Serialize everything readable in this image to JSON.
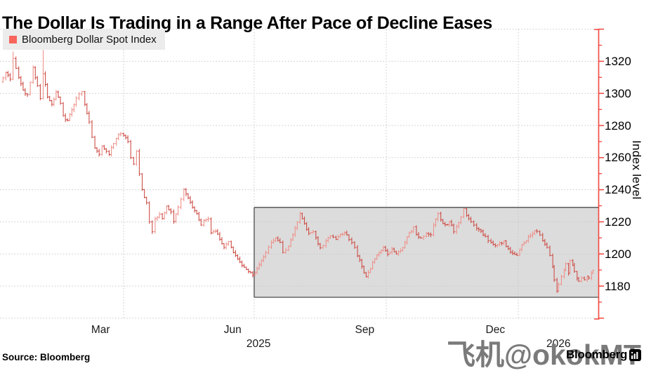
{
  "title": "The Dollar Is Trading in a Range After Pace of Decline Eases",
  "legend": {
    "label": "Bloomberg Dollar Spot Index",
    "swatch_icon": "red-square-icon"
  },
  "source": "Source: Bloomberg",
  "branding": {
    "logo_text": "Bloomberg",
    "logo_icon": "bloomberg-terminal-icon"
  },
  "watermark": "飞机@okokMT",
  "colors": {
    "accent_red_axis": "#f2453e",
    "bar_up": "#ee928c",
    "bar_down": "#cd4f48",
    "legend_swatch": "#f8655c",
    "legend_bg": "#ececec",
    "grid": "#c7c7c7",
    "range_box_fill": "#dcdcdc",
    "range_box_border": "#4c4c4c",
    "watermark_gray": "#7a7a7a"
  },
  "chart_data": {
    "type": "ohlc",
    "title": "The Dollar Is Trading in a Range After Pace of Decline Eases",
    "y_axis": {
      "label": "Index level",
      "ticks": [
        1180,
        1200,
        1220,
        1240,
        1260,
        1280,
        1300,
        1320
      ],
      "minor_tick_step": 10,
      "grid_step": 20,
      "ylim": [
        1159,
        1341
      ]
    },
    "x_axis": {
      "month_labels": [
        {
          "text": "Mar",
          "date": "2025-03-16"
        },
        {
          "text": "Jun",
          "date": "2025-06-16"
        },
        {
          "text": "Sep",
          "date": "2025-09-16"
        },
        {
          "text": "Dec",
          "date": "2025-12-16"
        }
      ],
      "year_labels": [
        {
          "text": "2025",
          "date": "2025-07-04"
        },
        {
          "text": "2026",
          "date": "2026-01-29"
        }
      ],
      "gridline_dates": [
        "2025-04-01",
        "2025-07-01",
        "2025-10-01",
        "2026-01-01"
      ],
      "range": [
        "2025-01-04",
        "2026-02-25"
      ]
    },
    "range_box": {
      "from": "2025-07-01",
      "high": 1229,
      "low": 1173
    },
    "series": [
      {
        "name": "Bloomberg Dollar Spot Index",
        "dates": [
          "2025-01-05",
          "2025-01-09",
          "2025-01-12",
          "2025-01-14",
          "2025-01-18",
          "2025-01-21",
          "2025-01-24",
          "2025-01-28",
          "2025-01-31",
          "2025-02-02",
          "2025-02-04",
          "2025-02-07",
          "2025-02-10",
          "2025-02-13",
          "2025-02-16",
          "2025-02-18",
          "2025-02-21",
          "2025-02-24",
          "2025-02-27",
          "2025-03-03",
          "2025-03-05",
          "2025-03-08",
          "2025-03-10",
          "2025-03-12",
          "2025-03-15",
          "2025-03-17",
          "2025-03-20",
          "2025-03-22",
          "2025-03-25",
          "2025-03-27",
          "2025-03-30",
          "2025-04-01",
          "2025-04-04",
          "2025-04-06",
          "2025-04-08",
          "2025-04-10",
          "2025-04-12",
          "2025-04-14",
          "2025-04-17",
          "2025-04-19",
          "2025-04-21",
          "2025-04-23",
          "2025-04-26",
          "2025-04-28",
          "2025-05-01",
          "2025-05-04",
          "2025-05-06",
          "2025-05-09",
          "2025-05-13",
          "2025-05-16",
          "2025-05-19",
          "2025-05-22",
          "2025-05-25",
          "2025-05-27",
          "2025-05-30",
          "2025-06-01",
          "2025-06-04",
          "2025-06-07",
          "2025-06-10",
          "2025-06-13",
          "2025-06-15",
          "2025-06-18",
          "2025-06-21",
          "2025-06-24",
          "2025-06-27",
          "2025-06-30",
          "2025-07-03",
          "2025-07-06",
          "2025-07-09",
          "2025-07-13",
          "2025-07-16",
          "2025-07-19",
          "2025-07-21",
          "2025-07-25",
          "2025-07-28",
          "2025-07-31",
          "2025-08-02",
          "2025-08-05",
          "2025-08-08",
          "2025-08-11",
          "2025-08-13",
          "2025-08-16",
          "2025-08-20",
          "2025-08-23",
          "2025-08-27",
          "2025-08-30",
          "2025-09-02",
          "2025-09-05",
          "2025-09-09",
          "2025-09-11",
          "2025-09-14",
          "2025-09-17",
          "2025-09-20",
          "2025-09-23",
          "2025-09-26",
          "2025-09-29",
          "2025-10-02",
          "2025-10-05",
          "2025-10-08",
          "2025-10-11",
          "2025-10-14",
          "2025-10-17",
          "2025-10-20",
          "2025-10-22",
          "2025-10-25",
          "2025-10-29",
          "2025-11-01",
          "2025-11-03",
          "2025-11-06",
          "2025-11-08",
          "2025-11-11",
          "2025-11-14",
          "2025-11-17",
          "2025-11-19",
          "2025-11-22",
          "2025-11-24",
          "2025-11-26",
          "2025-11-29",
          "2025-12-03",
          "2025-12-06",
          "2025-12-09",
          "2025-12-13",
          "2025-12-16",
          "2025-12-19",
          "2025-12-22",
          "2025-12-25",
          "2025-12-28",
          "2025-12-31",
          "2026-01-02",
          "2026-01-05",
          "2026-01-08",
          "2026-01-11",
          "2026-01-14",
          "2026-01-16",
          "2026-01-18",
          "2026-01-21",
          "2026-01-23",
          "2026-01-25",
          "2026-01-26",
          "2026-01-28",
          "2026-01-29",
          "2026-01-31",
          "2026-02-02",
          "2026-02-03",
          "2026-02-05",
          "2026-02-06",
          "2026-02-08",
          "2026-02-09",
          "2026-02-11",
          "2026-02-12",
          "2026-02-14",
          "2026-02-16",
          "2026-02-18",
          "2026-02-19",
          "2026-02-21",
          "2026-02-22"
        ],
        "values": [
          1307,
          1313,
          1309,
          1322,
          1310,
          1302,
          1299,
          1316,
          1305,
          1297,
          1312,
          1298,
          1293,
          1301,
          1294,
          1286,
          1283,
          1290,
          1297,
          1301,
          1293,
          1282,
          1273,
          1266,
          1262,
          1267,
          1264,
          1262,
          1269,
          1272,
          1275,
          1274,
          1270,
          1260,
          1256,
          1264,
          1250,
          1240,
          1232,
          1220,
          1214,
          1222,
          1225,
          1222,
          1230,
          1226,
          1220,
          1229,
          1240,
          1235,
          1229,
          1225,
          1218,
          1221,
          1222,
          1213,
          1214,
          1209,
          1204,
          1208,
          1204,
          1199,
          1195,
          1192,
          1189,
          1187,
          1191,
          1196,
          1201,
          1207,
          1210,
          1207,
          1201,
          1205,
          1212,
          1220,
          1225,
          1219,
          1213,
          1214,
          1210,
          1204,
          1208,
          1211,
          1209,
          1212,
          1213,
          1209,
          1204,
          1199,
          1192,
          1186,
          1191,
          1197,
          1201,
          1204,
          1200,
          1203,
          1200,
          1202,
          1207,
          1213,
          1217,
          1212,
          1210,
          1213,
          1212,
          1218,
          1225,
          1221,
          1218,
          1220,
          1214,
          1217,
          1223,
          1228,
          1224,
          1220,
          1216,
          1214,
          1211,
          1207,
          1205,
          1207,
          1208,
          1203,
          1200,
          1199,
          1203,
          1207,
          1211,
          1213,
          1214,
          1212,
          1208,
          1204,
          1199,
          1192,
          1184,
          1177,
          1181,
          1186,
          1190,
          1194,
          1188,
          1196,
          1193,
          1189,
          1185,
          1183,
          1185,
          1184,
          1186,
          1185,
          1188,
          1190
        ]
      }
    ],
    "spike_highs": [
      {
        "date": "2025-01-14",
        "high": 1326
      },
      {
        "date": "2025-02-04",
        "high": 1327
      }
    ]
  }
}
